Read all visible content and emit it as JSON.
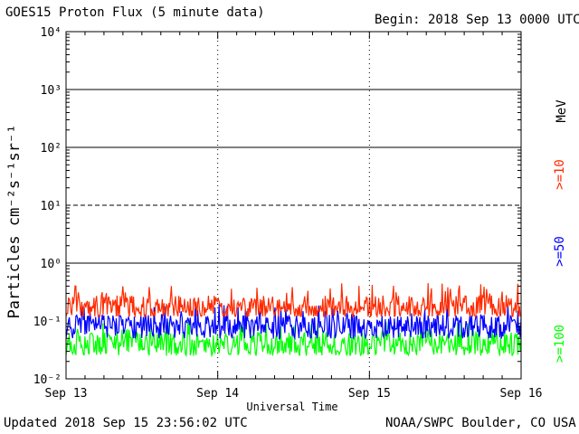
{
  "header": {
    "title": "GOES15 Proton Flux (5 minute data)",
    "begin": "Begin: 2018 Sep 13 0000 UTC"
  },
  "footer": {
    "updated": "Updated 2018 Sep 15 23:56:02 UTC",
    "credit": "NOAA/SWPC Boulder, CO USA"
  },
  "chart_data": {
    "type": "line",
    "title": "GOES15 Proton Flux (5 minute data)",
    "xlabel": "Universal Time",
    "ylabel": "Particles cm⁻²s⁻¹sr⁻¹",
    "yscale": "log",
    "ylim": [
      0.01,
      10000
    ],
    "ytick_labels": [
      "10⁻²",
      "10⁻¹",
      "10⁰",
      "10¹",
      "10²",
      "10³",
      "10⁴"
    ],
    "xtick_labels": [
      "Sep 13",
      "Sep 14",
      "Sep 15",
      "Sep 16"
    ],
    "xlim": [
      "2018-09-13 00:00",
      "2018-09-16 00:00"
    ],
    "threshold_lines": [
      {
        "value": 1,
        "style": "solid"
      },
      {
        "value": 10,
        "style": "dashed"
      },
      {
        "value": 100,
        "style": "solid"
      },
      {
        "value": 1000,
        "style": "solid"
      }
    ],
    "energy_unit": "MeV",
    "series": [
      {
        "name": ">=10",
        "color": "#ff2a00",
        "typical_value": 0.17,
        "range": [
          0.12,
          0.45
        ]
      },
      {
        "name": ">=50",
        "color": "#0000ff",
        "typical_value": 0.08,
        "range": [
          0.045,
          0.2
        ]
      },
      {
        "name": ">=100",
        "color": "#00ff00",
        "typical_value": 0.04,
        "range": [
          0.025,
          0.1
        ]
      }
    ]
  }
}
